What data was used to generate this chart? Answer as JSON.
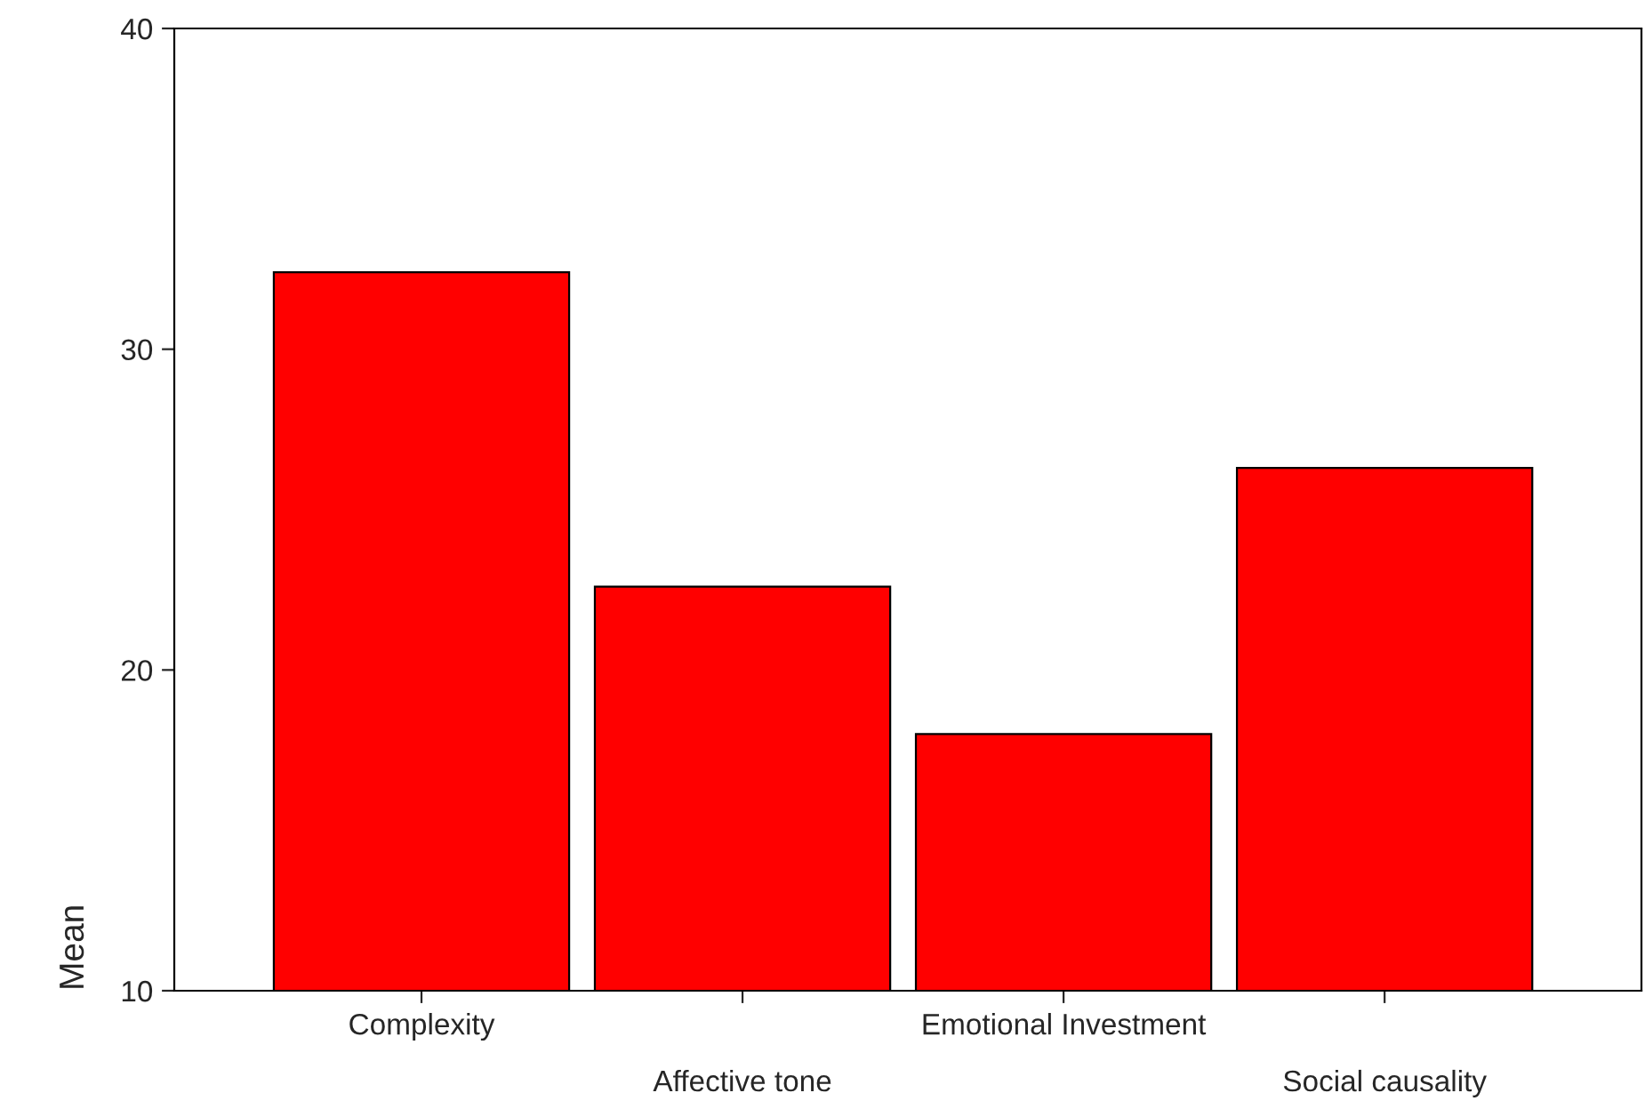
{
  "chart_data": {
    "type": "bar",
    "categories": [
      "Complexity",
      "Affective tone",
      "Emotional Investment",
      "Social causality"
    ],
    "values": [
      32.4,
      22.6,
      18.0,
      26.3
    ],
    "color": "#ff0000",
    "ylabel": "Mean",
    "ylim": [
      10,
      40
    ],
    "yticks": [
      10,
      20,
      30,
      40
    ],
    "grid": false,
    "legend": false
  }
}
